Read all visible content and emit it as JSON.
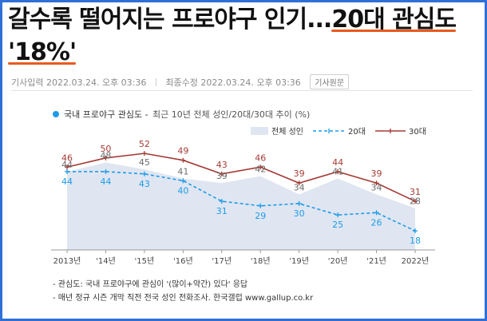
{
  "headline": {
    "part1": "갈수록 떨어지는 프로야구 인기...",
    "part2": "20대 관심도",
    "part3": "'18%'"
  },
  "meta": {
    "input": "기사입력 2022.03.24. 오후 03:36",
    "modified": "최종수정 2022.03.24. 오후 03:36",
    "original_button": "기사원문"
  },
  "chart_heading": {
    "title": "국내 프로야구 관심도 -",
    "subtitle": "최근 10년 전체 성인/20대/30대 추이 (%)"
  },
  "colors": {
    "total": "#dfe6f1",
    "twenties": "#1e9be8",
    "thirties": "#a33b35",
    "accent": "#e85a1f",
    "frame": "#2f6fd6"
  },
  "chart_data": {
    "type": "line",
    "categories": [
      "2013년",
      "'14년",
      "'15년",
      "'16년",
      "'17년",
      "'18년",
      "'19년",
      "'20년",
      "'21년",
      "2022년"
    ],
    "series": [
      {
        "name": "전체 성인",
        "style": "area",
        "values": [
          44,
          48,
          45,
          41,
          39,
          42,
          34,
          41,
          34,
          28
        ]
      },
      {
        "name": "20대",
        "style": "dashed",
        "values": [
          44,
          44,
          43,
          40,
          31,
          29,
          30,
          25,
          26,
          18
        ]
      },
      {
        "name": "30대",
        "style": "solid",
        "values": [
          46,
          50,
          52,
          49,
          43,
          46,
          39,
          44,
          39,
          31
        ]
      }
    ],
    "ylim": [
      10,
      58
    ],
    "legend_position": "top-right",
    "grid": false
  },
  "notes": [
    "- 관심도: 국내 프로야구에 관심이 '(많이+약간) 있다' 응답",
    "- 매년 정규 시즌 개막 직전 전국 성인 전화조사. 한국갤럽 www.gallup.co.kr"
  ]
}
